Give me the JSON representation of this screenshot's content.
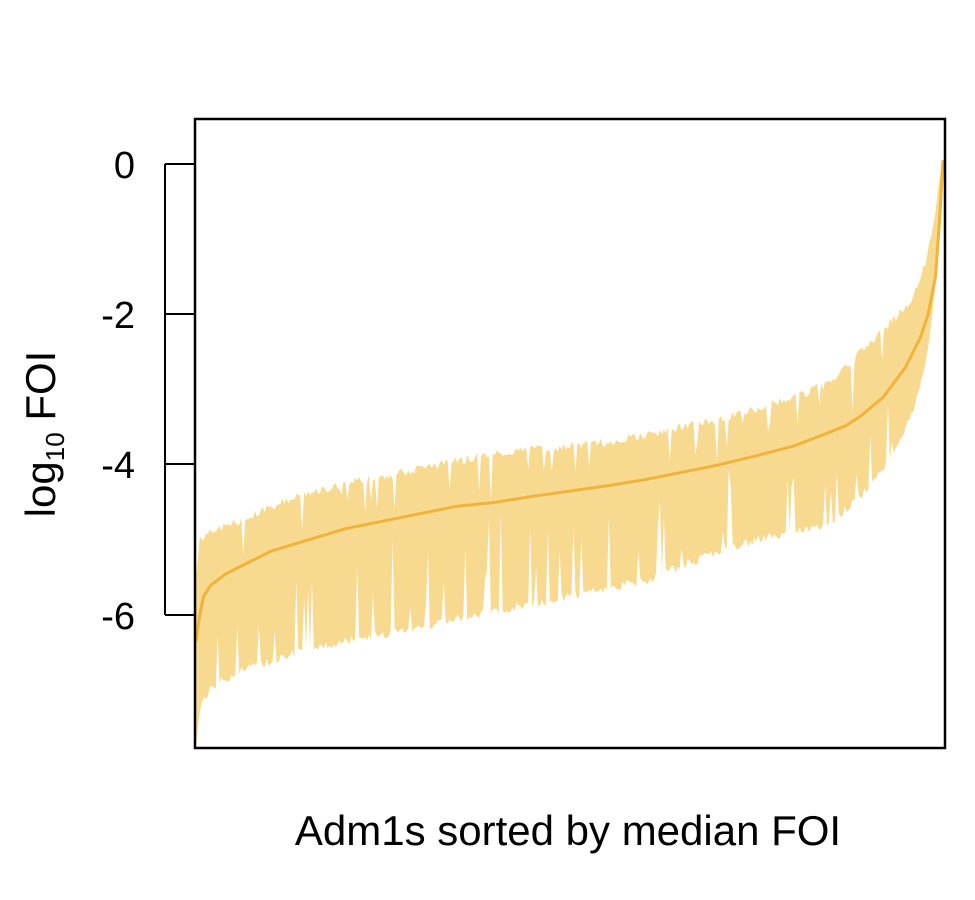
{
  "chart_data": {
    "type": "area",
    "title": "",
    "xlabel": "Adm1s sorted by median FOI",
    "ylabel": {
      "prefix": "log",
      "subscript": "10",
      "suffix": " FOI"
    },
    "y_ticks": [
      0,
      -2,
      -4,
      -6
    ],
    "y_tick_labels": [
      "0",
      "-2",
      "-4",
      "-6"
    ],
    "ylim": [
      -7.75,
      0.6
    ],
    "xlim": [
      0,
      1
    ],
    "x_ticks": [],
    "grid": false,
    "legend": "none",
    "colors": {
      "median_line": "#F0B43C",
      "interval_fill": "#F7D98F",
      "frame": "#000000"
    },
    "series": [
      {
        "kind": "median",
        "x": [
          0.0,
          0.005,
          0.01,
          0.02,
          0.04,
          0.06,
          0.1,
          0.15,
          0.2,
          0.25,
          0.3,
          0.35,
          0.4,
          0.45,
          0.5,
          0.55,
          0.6,
          0.65,
          0.7,
          0.75,
          0.8,
          0.84,
          0.87,
          0.89,
          0.92,
          0.95,
          0.97,
          0.98,
          0.99,
          0.995,
          1.0
        ],
        "values": [
          -6.35,
          -6.0,
          -5.75,
          -5.6,
          -5.45,
          -5.35,
          -5.15,
          -5.0,
          -4.85,
          -4.75,
          -4.65,
          -4.55,
          -4.5,
          -4.42,
          -4.35,
          -4.28,
          -4.2,
          -4.1,
          -4.0,
          -3.88,
          -3.75,
          -3.6,
          -3.48,
          -3.35,
          -3.1,
          -2.7,
          -2.3,
          -2.0,
          -1.5,
          -0.8,
          0.05
        ]
      },
      {
        "kind": "upper",
        "x": [
          0.0,
          0.005,
          0.01,
          0.03,
          0.06,
          0.1,
          0.15,
          0.2,
          0.25,
          0.3,
          0.35,
          0.4,
          0.45,
          0.5,
          0.55,
          0.6,
          0.65,
          0.7,
          0.75,
          0.8,
          0.84,
          0.87,
          0.9,
          0.93,
          0.96,
          0.98,
          0.99,
          0.995,
          1.0
        ],
        "values": [
          -5.5,
          -5.0,
          -4.95,
          -4.85,
          -4.75,
          -4.55,
          -4.4,
          -4.25,
          -4.15,
          -4.05,
          -3.95,
          -3.85,
          -3.8,
          -3.75,
          -3.7,
          -3.62,
          -3.5,
          -3.4,
          -3.25,
          -3.1,
          -2.95,
          -2.7,
          -2.4,
          -2.1,
          -1.8,
          -1.2,
          -0.6,
          -0.2,
          0.05
        ]
      },
      {
        "kind": "lower",
        "x": [
          0.0,
          0.005,
          0.01,
          0.03,
          0.06,
          0.1,
          0.15,
          0.2,
          0.25,
          0.3,
          0.35,
          0.4,
          0.45,
          0.5,
          0.55,
          0.6,
          0.65,
          0.7,
          0.75,
          0.8,
          0.84,
          0.87,
          0.9,
          0.93,
          0.96,
          0.98,
          0.99,
          0.995,
          1.0
        ],
        "values": [
          -7.7,
          -7.3,
          -7.1,
          -6.9,
          -6.75,
          -6.6,
          -6.45,
          -6.35,
          -6.25,
          -6.15,
          -6.05,
          -5.95,
          -5.85,
          -5.75,
          -5.65,
          -5.55,
          -5.35,
          -5.15,
          -5.0,
          -4.9,
          -4.8,
          -4.6,
          -4.3,
          -3.9,
          -3.3,
          -2.5,
          -1.6,
          -0.9,
          0.0
        ]
      }
    ]
  }
}
